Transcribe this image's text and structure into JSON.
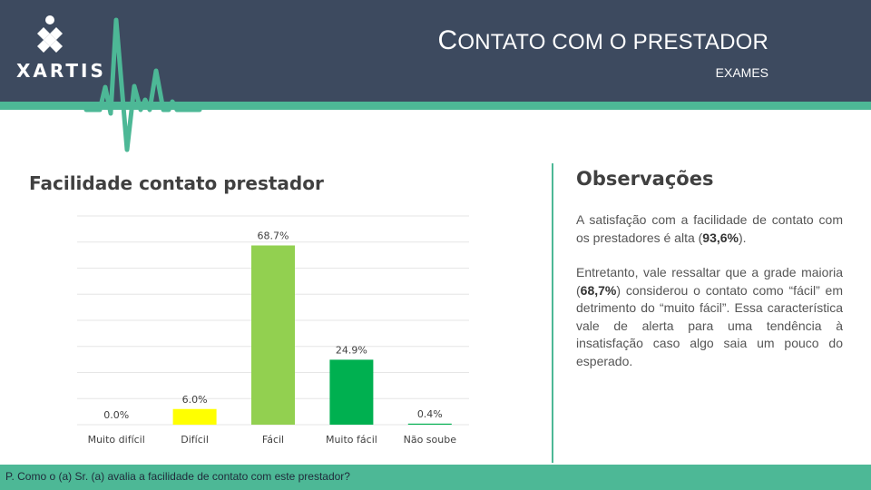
{
  "header": {
    "logo_text": "XARTIS",
    "title_first": "C",
    "title_rest": "ONTATO COM O PRESTADOR",
    "subtitle": "EXAMES",
    "colors": {
      "header_bg": "#3d4a5f",
      "accent": "#4db896"
    }
  },
  "chart_title": "Facilidade contato prestador",
  "chart_data": {
    "type": "bar",
    "categories": [
      "Muito difícil",
      "Difícil",
      "Fácil",
      "Muito fácil",
      "Não soube"
    ],
    "values": [
      0.0,
      6.0,
      68.7,
      24.9,
      0.4
    ],
    "labels": [
      "0.0%",
      "6.0%",
      "68.7%",
      "24.9%",
      "0.4%"
    ],
    "colors": [
      "#ffff00",
      "#ffff00",
      "#92d050",
      "#00b050",
      "#00b050"
    ],
    "ylim": [
      0,
      80
    ],
    "grid": true,
    "title": "Facilidade contato prestador"
  },
  "observations": {
    "title": "Observações",
    "p1_before": "A satisfação com a facilidade de contato com os prestadores é alta (",
    "p1_bold": "93,6%",
    "p1_after": ").",
    "p2_before": "Entretanto, vale ressaltar que a grade maioria (",
    "p2_bold": "68,7%",
    "p2_after": ") considerou o contato como “fácil” em detrimento do “muito fácil”. Essa característica vale de alerta para uma tendência à insatisfação caso algo saia um pouco do esperado."
  },
  "footer": {
    "question": "P. Como o (a) Sr. (a) avalia a facilidade de contato com este prestador?"
  }
}
